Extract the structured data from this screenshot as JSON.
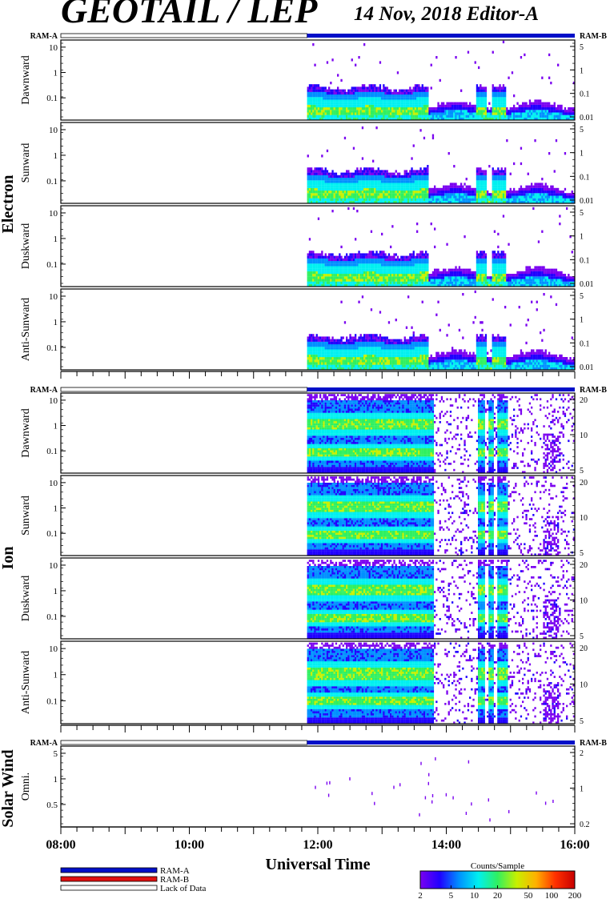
{
  "header": {
    "instrument": "GEOTAIL / LEP",
    "date_editor": "14 Nov, 2018   Editor-A"
  },
  "groups": [
    "Electron",
    "Ion",
    "Solar Wind"
  ],
  "ram": {
    "left": "RAM-A",
    "right": "RAM-B"
  },
  "colors": {
    "ram_a": "#0010c8",
    "ram_b": "#e01010",
    "lack_of_data": "#ffffff",
    "colorbar": [
      "#ffffff",
      "#7a00f0",
      "#2000ff",
      "#0090ff",
      "#00f0f0",
      "#30f060",
      "#c8f000",
      "#ffb000",
      "#ff3000",
      "#c80000"
    ]
  },
  "chart_data": [
    {
      "type": "heatmap",
      "group": "Electron",
      "x_range": [
        "08:00",
        "16:00"
      ],
      "data_start": "11:50",
      "left_axis": {
        "scale": "log",
        "ticks": [
          "10",
          "1",
          "0.1"
        ]
      },
      "right_axis": {
        "scale": "log",
        "ticks": [
          "5",
          "1",
          "0.1",
          "0.01"
        ]
      },
      "panels": [
        {
          "ylabel": "Dawnward"
        },
        {
          "ylabel": "Sunward"
        },
        {
          "ylabel": "Duskward"
        },
        {
          "ylabel": "Anti-Sunward"
        }
      ]
    },
    {
      "type": "heatmap",
      "group": "Ion",
      "x_range": [
        "08:00",
        "16:00"
      ],
      "data_start": "11:50",
      "left_axis": {
        "scale": "log",
        "ticks": [
          "10",
          "1",
          "0.1"
        ]
      },
      "right_axis": {
        "scale": "log",
        "ticks": [
          "20",
          "10",
          "5"
        ]
      },
      "panels": [
        {
          "ylabel": "Dawnward"
        },
        {
          "ylabel": "Sunward"
        },
        {
          "ylabel": "Duskward"
        },
        {
          "ylabel": "Anti-Sunward"
        }
      ]
    },
    {
      "type": "scatter",
      "group": "Solar Wind",
      "x_range": [
        "08:00",
        "16:00"
      ],
      "data_start": "11:50",
      "left_axis": {
        "scale": "log",
        "ticks": [
          "5",
          "1",
          "0.5"
        ]
      },
      "right_axis": {
        "scale": "log",
        "ticks": [
          "2",
          "1",
          "0.2"
        ]
      },
      "panels": [
        {
          "ylabel": "Omni."
        }
      ]
    }
  ],
  "time_axis": {
    "label": "Universal Time",
    "ticks": [
      "08:00",
      "10:00",
      "12:00",
      "14:00",
      "16:00"
    ]
  },
  "legend": {
    "items": [
      "RAM-A",
      "RAM-B",
      "Lack of Data"
    ]
  },
  "colorbar": {
    "title": "Counts/Sample",
    "ticks": [
      "2",
      "5",
      "10",
      "20",
      "50",
      "100",
      "200"
    ]
  }
}
